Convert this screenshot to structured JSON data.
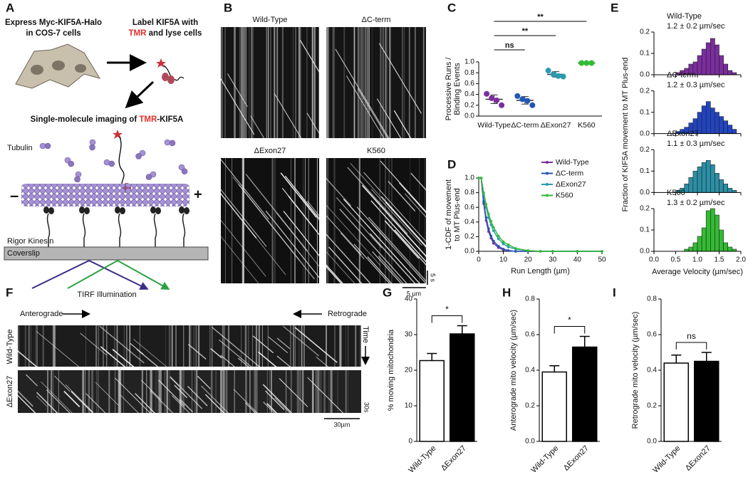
{
  "panel_labels": [
    "A",
    "B",
    "C",
    "D",
    "E",
    "F",
    "G",
    "H",
    "I"
  ],
  "schematic": {
    "step1": [
      "Express Myc-KIF5A-Halo",
      "in COS-7 cells"
    ],
    "step2": {
      "line1": "Label KIF5A with",
      "red": "TMR",
      "rest": "and lyse cells"
    },
    "step3": {
      "before": "Single-molecule imaging of",
      "red": "TMR",
      "after": "-KIF5A"
    },
    "tubulin": "Tubulin",
    "minus": "–",
    "plus": "+",
    "rigor": "Rigor Kinesin",
    "coverslip": "Coverslip",
    "tirf": "TIRF Illumination"
  },
  "kymographs_b": {
    "titles": [
      "Wild-Type",
      "ΔC-term",
      "ΔExon27",
      "K560"
    ],
    "time_scale": "5 s",
    "length_scale": "5 µm"
  },
  "kymographs_f": {
    "anterograde": "Anterograde",
    "retrograde": "Retrograde",
    "time": "Time",
    "rows": [
      "Wild-Type",
      "ΔExon27"
    ],
    "time_scale": "30s",
    "length_scale": "30µm"
  },
  "chart_data": [
    {
      "type": "dot",
      "ylabel": [
        "Processive Runs /",
        "Binding Events"
      ],
      "categories": [
        "Wild-Type",
        "ΔC-term",
        "ΔExon27",
        "K560"
      ],
      "groups": [
        {
          "color": "#7b2d9e",
          "values": [
            0.41,
            0.33,
            0.29,
            0.2
          ],
          "mean": 0.31,
          "sd": 0.08
        },
        {
          "color": "#2255b5",
          "values": [
            0.37,
            0.31,
            0.28,
            0.2
          ],
          "mean": 0.29,
          "sd": 0.07
        },
        {
          "color": "#2a9ab0",
          "values": [
            0.84,
            0.77,
            0.74,
            0.73
          ],
          "mean": 0.77,
          "sd": 0.05
        },
        {
          "color": "#33bb33",
          "values": [
            0.98,
            0.98,
            0.98
          ],
          "mean": 0.98,
          "sd": 0.01
        }
      ],
      "comparisons": [
        {
          "groups": [
            "Wild-Type",
            "ΔC-term"
          ],
          "label": "ns"
        },
        {
          "groups": [
            "Wild-Type",
            "ΔExon27"
          ],
          "label": "**"
        },
        {
          "groups": [
            "Wild-Type",
            "K560"
          ],
          "label": "**"
        }
      ],
      "ylim": [
        0,
        1
      ],
      "yticks": [
        {
          "value": 0,
          "label": "0.0"
        },
        0.2,
        0.4,
        0.6,
        0.8,
        {
          "value": 1,
          "label": "1.0"
        }
      ]
    },
    {
      "type": "line",
      "xlabel": "Run Length (µm)",
      "ylabel": [
        "1-CDF of movement",
        "to MT Plus-end"
      ],
      "x": [
        0,
        1,
        2,
        3,
        4,
        5,
        6,
        8,
        10,
        12,
        15,
        20,
        25,
        30,
        40,
        50
      ],
      "series": [
        {
          "name": "Wild-Type",
          "color": "#7b2d9e",
          "values": [
            1,
            1,
            0.65,
            0.42,
            0.27,
            0.18,
            0.11,
            0.05,
            0.02,
            0.01,
            0,
            0,
            0,
            0,
            0,
            0
          ]
        },
        {
          "name": "ΔC-term",
          "color": "#2255b5",
          "values": [
            1,
            1,
            0.68,
            0.46,
            0.31,
            0.21,
            0.14,
            0.07,
            0.03,
            0.01,
            0,
            0,
            0,
            0,
            0,
            0
          ]
        },
        {
          "name": "ΔExon27",
          "color": "#2a9ab0",
          "values": [
            1,
            1,
            0.78,
            0.6,
            0.46,
            0.36,
            0.28,
            0.17,
            0.1,
            0.06,
            0.03,
            0.01,
            0,
            0,
            0,
            0
          ]
        },
        {
          "name": "K560",
          "color": "#33bb33",
          "values": [
            1,
            1,
            0.8,
            0.64,
            0.51,
            0.41,
            0.33,
            0.21,
            0.13,
            0.09,
            0.04,
            0.01,
            0,
            0,
            0,
            0
          ]
        }
      ],
      "xlim": [
        0,
        50
      ],
      "xticks": [
        0,
        10,
        20,
        30,
        40,
        50
      ],
      "ylim": [
        0,
        1
      ],
      "yticks": [
        {
          "value": 0,
          "label": "0.0"
        },
        0.2,
        0.4,
        0.6,
        0.8,
        {
          "value": 1,
          "label": "1.0"
        }
      ],
      "legend": "top-right"
    },
    {
      "type": "histogram",
      "xlabel": "Average Velocity (µm/sec)",
      "ylabel": "Fraction of KIF5A movement to MT Plus-end",
      "bins": [
        0.5,
        0.6,
        0.7,
        0.8,
        0.9,
        1.0,
        1.1,
        1.2,
        1.3,
        1.4,
        1.5,
        1.6,
        1.7,
        1.8,
        1.9
      ],
      "series": [
        {
          "name": "Wild-Type",
          "stat": "1.2 ± 0.2 µm/sec",
          "color": "#7b2d9e",
          "values": [
            0.01,
            0.02,
            0.03,
            0.05,
            0.06,
            0.09,
            0.12,
            0.15,
            0.17,
            0.14,
            0.09,
            0.05,
            0.02,
            0.01
          ]
        },
        {
          "name": "ΔC-term",
          "stat": "1.2 ± 0.3 µm/sec",
          "color": "#2244c0",
          "values": [
            0.01,
            0.02,
            0.03,
            0.05,
            0.07,
            0.1,
            0.13,
            0.15,
            0.12,
            0.1,
            0.08,
            0.06,
            0.04,
            0.02
          ]
        },
        {
          "name": "ΔExon27",
          "stat": "1.1 ± 0.3 µm/sec",
          "color": "#2a8fa5",
          "values": [
            0.01,
            0.02,
            0.04,
            0.07,
            0.1,
            0.12,
            0.14,
            0.15,
            0.13,
            0.09,
            0.06,
            0.04,
            0.02,
            0.01
          ]
        },
        {
          "name": "K560",
          "stat": "1.3 ± 0.2 µm/sec",
          "color": "#33bb33",
          "values": [
            0,
            0,
            0.01,
            0.02,
            0.04,
            0.07,
            0.11,
            0.19,
            0.2,
            0.17,
            0.1,
            0.04,
            0.02,
            0.01
          ]
        }
      ],
      "xlim": [
        0,
        2
      ],
      "xticks": [
        {
          "value": 0,
          "label": "0.0"
        },
        0.5,
        {
          "value": 1,
          "label": "1.0"
        },
        1.5,
        {
          "value": 2,
          "label": "2.0"
        }
      ],
      "ylim": [
        0,
        0.2
      ],
      "yticks": [
        {
          "value": 0,
          "label": "0.0"
        },
        0.1,
        0.2
      ]
    },
    {
      "type": "bar",
      "ylabel": "% moving mitochondria",
      "categories": [
        "Wild-Type",
        "ΔExon27"
      ],
      "values": [
        22.7,
        30.2
      ],
      "errors": [
        2.0,
        2.3
      ],
      "colors": [
        "#ffffff",
        "#000000"
      ],
      "significance": "*",
      "ylim": [
        0,
        40
      ],
      "yticks": [
        0,
        10,
        20,
        30,
        40
      ]
    },
    {
      "type": "bar",
      "ylabel": "Anterograde mito velocity (µm/sec)",
      "categories": [
        "Wild-Type",
        "ΔExon27"
      ],
      "values": [
        0.39,
        0.53
      ],
      "errors": [
        0.035,
        0.06
      ],
      "colors": [
        "#ffffff",
        "#000000"
      ],
      "significance": "*",
      "ylim": [
        0,
        0.8
      ],
      "yticks": [
        {
          "value": 0,
          "label": "0.0"
        },
        0.2,
        0.4,
        0.6,
        0.8
      ]
    },
    {
      "type": "bar",
      "ylabel": "Retrograde mito velocity (µm/sec)",
      "categories": [
        "Wild-Type",
        "ΔExon27"
      ],
      "values": [
        0.44,
        0.45
      ],
      "errors": [
        0.045,
        0.05
      ],
      "colors": [
        "#ffffff",
        "#000000"
      ],
      "significance": "ns",
      "ylim": [
        0,
        0.8
      ],
      "yticks": [
        {
          "value": 0,
          "label": "0.0"
        },
        0.2,
        0.4,
        0.6,
        0.8
      ]
    }
  ]
}
